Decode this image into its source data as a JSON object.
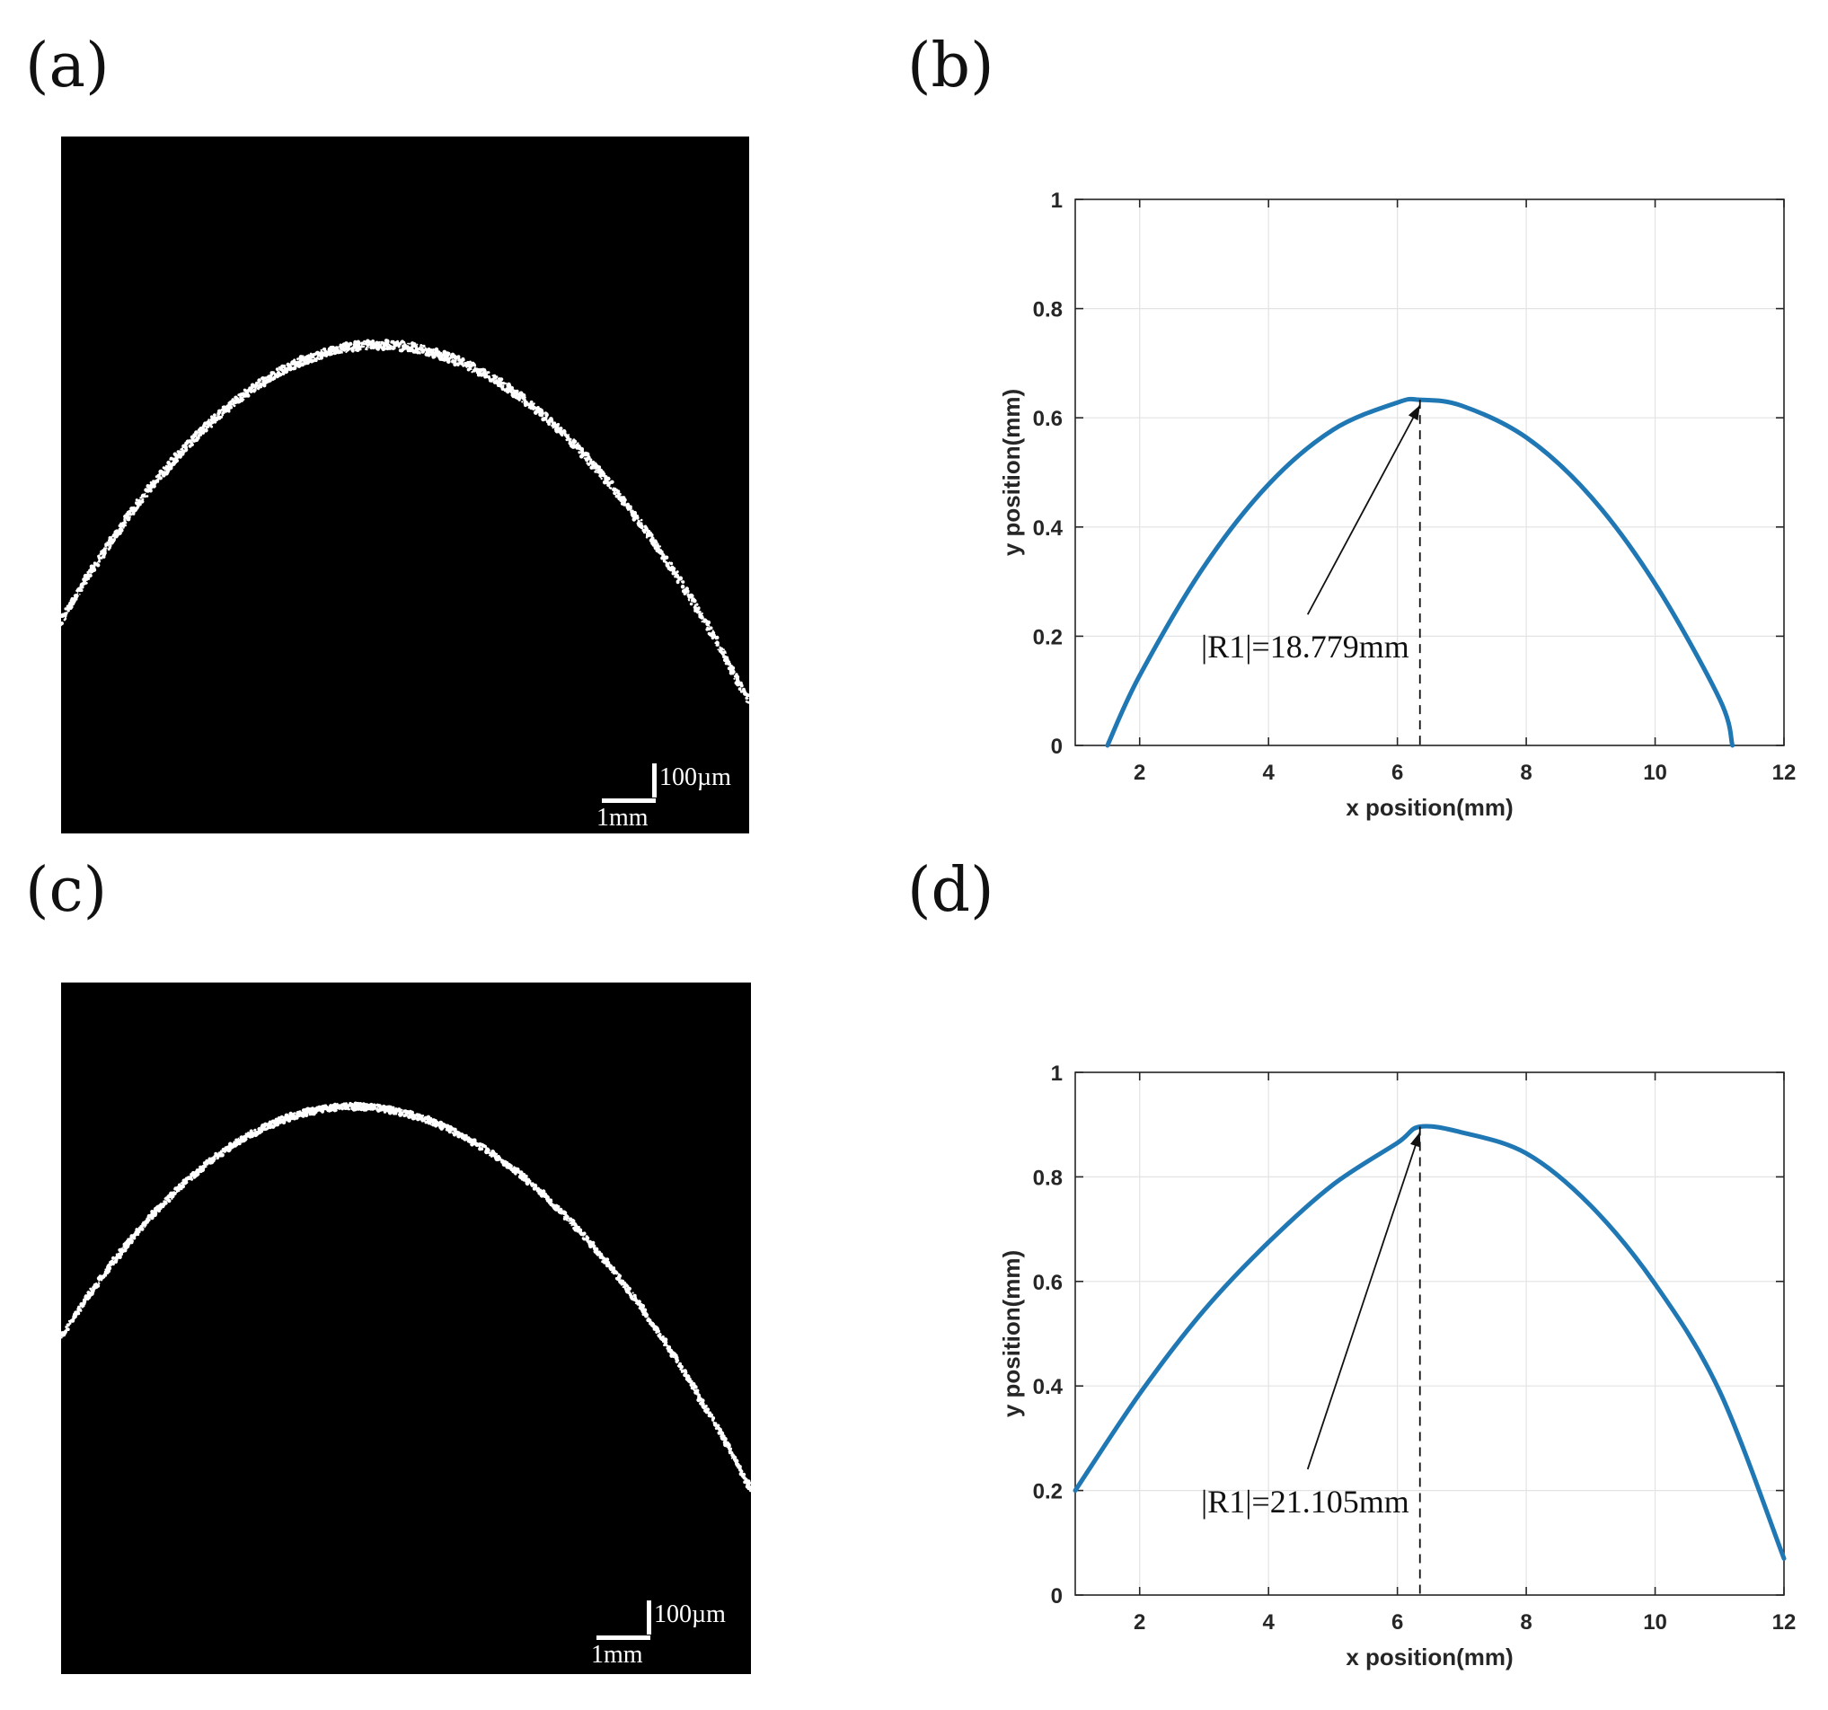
{
  "panels": {
    "a": {
      "label": "(a)",
      "scale_v": "100µm",
      "scale_h": "1mm"
    },
    "b": {
      "label": "(b)"
    },
    "c": {
      "label": "(c)",
      "scale_v": "100µm",
      "scale_h": "1mm"
    },
    "d": {
      "label": "(d)"
    }
  },
  "colors": {
    "curve": "#1f77b4",
    "image_bg": "#000000",
    "speckle": "#ffffff"
  },
  "chart_data": [
    {
      "panel": "b",
      "type": "line",
      "xlabel": "x position(mm)",
      "ylabel": "y position(mm)",
      "xlim": [
        1,
        12
      ],
      "ylim": [
        0,
        1
      ],
      "xticks": [
        2,
        4,
        6,
        8,
        10,
        12
      ],
      "yticks": [
        0,
        0.2,
        0.4,
        0.6,
        0.8,
        1
      ],
      "grid": true,
      "series": [
        {
          "x": [
            1.5,
            2.0,
            3.0,
            4.0,
            5.0,
            6.0,
            6.35,
            7.0,
            8.0,
            9.0,
            10.0,
            11.0,
            11.2
          ],
          "y": [
            0.0,
            0.128,
            0.328,
            0.478,
            0.578,
            0.628,
            0.633,
            0.622,
            0.564,
            0.456,
            0.296,
            0.085,
            0.0
          ]
        }
      ],
      "annotation": {
        "text": "|R1|=18.779mm",
        "vertex_x": 6.35,
        "vertex_y": 0.633
      }
    },
    {
      "panel": "d",
      "type": "line",
      "xlabel": "x position(mm)",
      "ylabel": "y position(mm)",
      "xlim": [
        1,
        12
      ],
      "ylim": [
        0,
        1
      ],
      "xticks": [
        2,
        4,
        6,
        8,
        10,
        12
      ],
      "yticks": [
        0,
        0.2,
        0.4,
        0.6,
        0.8,
        1
      ],
      "grid": true,
      "series": [
        {
          "x": [
            1.0,
            2.0,
            3.0,
            4.0,
            5.0,
            6.0,
            6.35,
            7.0,
            8.0,
            9.0,
            10.0,
            11.0,
            12.0
          ],
          "y": [
            0.2,
            0.385,
            0.545,
            0.675,
            0.785,
            0.865,
            0.896,
            0.885,
            0.845,
            0.745,
            0.595,
            0.39,
            0.07
          ]
        }
      ],
      "annotation": {
        "text": "|R1|=21.105mm",
        "vertex_x": 6.35,
        "vertex_y": 0.896
      }
    }
  ]
}
